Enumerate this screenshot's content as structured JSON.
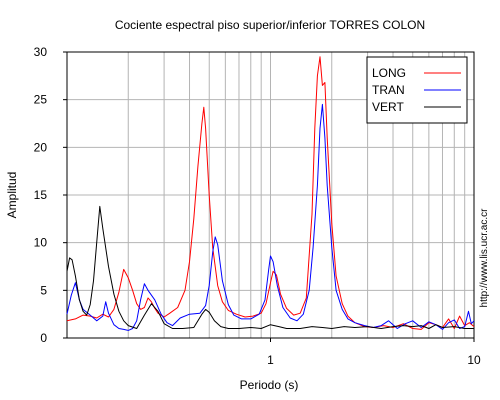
{
  "chart_data": {
    "type": "line",
    "title": "Cociente espectral piso superior/inferior  TORRES COLON",
    "xlabel": "Periodo (s)",
    "ylabel": "Amplitud",
    "xscale": "log",
    "xlim": [
      0.1,
      10
    ],
    "ylim": [
      0,
      30
    ],
    "x_tick_labels": [
      "1",
      "10"
    ],
    "y_ticks": [
      0,
      5,
      10,
      15,
      20,
      25,
      30
    ],
    "grid": true,
    "legend_position": "top-right",
    "side_text": "http://www.lis.ucr.ac.cr",
    "series": [
      {
        "name": "LONG",
        "color": "#ff0000",
        "points": [
          [
            0.1,
            1.8
          ],
          [
            0.11,
            2.0
          ],
          [
            0.12,
            2.4
          ],
          [
            0.13,
            2.3
          ],
          [
            0.14,
            2.1
          ],
          [
            0.15,
            2.5
          ],
          [
            0.16,
            2.2
          ],
          [
            0.17,
            3.0
          ],
          [
            0.18,
            4.8
          ],
          [
            0.19,
            7.2
          ],
          [
            0.2,
            6.3
          ],
          [
            0.21,
            5.0
          ],
          [
            0.22,
            3.6
          ],
          [
            0.23,
            3.0
          ],
          [
            0.24,
            3.2
          ],
          [
            0.25,
            4.2
          ],
          [
            0.26,
            3.8
          ],
          [
            0.27,
            3.1
          ],
          [
            0.28,
            2.6
          ],
          [
            0.3,
            2.2
          ],
          [
            0.32,
            2.6
          ],
          [
            0.35,
            3.2
          ],
          [
            0.38,
            5.0
          ],
          [
            0.4,
            8.0
          ],
          [
            0.42,
            12.5
          ],
          [
            0.44,
            18.0
          ],
          [
            0.46,
            22.5
          ],
          [
            0.47,
            24.2
          ],
          [
            0.48,
            22.0
          ],
          [
            0.5,
            15.0
          ],
          [
            0.52,
            9.5
          ],
          [
            0.55,
            5.5
          ],
          [
            0.58,
            3.8
          ],
          [
            0.62,
            2.9
          ],
          [
            0.68,
            2.5
          ],
          [
            0.75,
            2.2
          ],
          [
            0.82,
            2.3
          ],
          [
            0.9,
            2.6
          ],
          [
            0.95,
            3.6
          ],
          [
            1.0,
            5.8
          ],
          [
            1.03,
            7.0
          ],
          [
            1.07,
            6.6
          ],
          [
            1.12,
            4.6
          ],
          [
            1.2,
            3.1
          ],
          [
            1.3,
            2.4
          ],
          [
            1.4,
            2.6
          ],
          [
            1.5,
            4.2
          ],
          [
            1.6,
            13.0
          ],
          [
            1.65,
            22.0
          ],
          [
            1.7,
            27.5
          ],
          [
            1.75,
            29.5
          ],
          [
            1.8,
            26.5
          ],
          [
            1.85,
            26.8
          ],
          [
            1.9,
            21.0
          ],
          [
            2.0,
            12.0
          ],
          [
            2.1,
            6.5
          ],
          [
            2.25,
            3.6
          ],
          [
            2.4,
            2.3
          ],
          [
            2.6,
            1.6
          ],
          [
            2.9,
            1.2
          ],
          [
            3.2,
            1.1
          ],
          [
            3.6,
            1.3
          ],
          [
            4.0,
            1.1
          ],
          [
            4.5,
            1.5
          ],
          [
            5.0,
            1.0
          ],
          [
            5.5,
            0.9
          ],
          [
            6.0,
            1.6
          ],
          [
            6.5,
            1.4
          ],
          [
            7.0,
            1.1
          ],
          [
            7.5,
            2.0
          ],
          [
            8.0,
            1.0
          ],
          [
            8.5,
            2.3
          ],
          [
            9.0,
            1.3
          ],
          [
            9.5,
            1.6
          ],
          [
            10.0,
            1.2
          ]
        ]
      },
      {
        "name": "TRAN",
        "color": "#0000ff",
        "points": [
          [
            0.1,
            2.5
          ],
          [
            0.105,
            4.5
          ],
          [
            0.11,
            5.8
          ],
          [
            0.115,
            4.0
          ],
          [
            0.12,
            3.0
          ],
          [
            0.13,
            2.4
          ],
          [
            0.14,
            1.8
          ],
          [
            0.15,
            2.3
          ],
          [
            0.155,
            3.8
          ],
          [
            0.16,
            2.6
          ],
          [
            0.17,
            1.4
          ],
          [
            0.18,
            1.0
          ],
          [
            0.19,
            0.9
          ],
          [
            0.2,
            0.8
          ],
          [
            0.21,
            1.0
          ],
          [
            0.22,
            1.8
          ],
          [
            0.23,
            4.0
          ],
          [
            0.24,
            5.7
          ],
          [
            0.25,
            5.0
          ],
          [
            0.27,
            4.0
          ],
          [
            0.29,
            2.5
          ],
          [
            0.31,
            1.6
          ],
          [
            0.33,
            1.3
          ],
          [
            0.36,
            2.1
          ],
          [
            0.4,
            2.5
          ],
          [
            0.45,
            2.6
          ],
          [
            0.48,
            3.4
          ],
          [
            0.5,
            5.5
          ],
          [
            0.52,
            9.0
          ],
          [
            0.535,
            10.6
          ],
          [
            0.55,
            9.8
          ],
          [
            0.58,
            6.0
          ],
          [
            0.62,
            3.5
          ],
          [
            0.66,
            2.4
          ],
          [
            0.72,
            2.0
          ],
          [
            0.8,
            2.0
          ],
          [
            0.88,
            2.5
          ],
          [
            0.94,
            4.0
          ],
          [
            0.98,
            7.2
          ],
          [
            1.0,
            8.6
          ],
          [
            1.03,
            8.0
          ],
          [
            1.08,
            5.5
          ],
          [
            1.15,
            3.2
          ],
          [
            1.25,
            2.1
          ],
          [
            1.35,
            1.8
          ],
          [
            1.45,
            2.5
          ],
          [
            1.55,
            5.0
          ],
          [
            1.62,
            9.5
          ],
          [
            1.7,
            16.0
          ],
          [
            1.75,
            22.0
          ],
          [
            1.8,
            24.5
          ],
          [
            1.85,
            21.0
          ],
          [
            1.9,
            16.0
          ],
          [
            2.0,
            9.5
          ],
          [
            2.1,
            5.0
          ],
          [
            2.25,
            3.0
          ],
          [
            2.4,
            2.0
          ],
          [
            2.6,
            1.6
          ],
          [
            2.9,
            1.3
          ],
          [
            3.2,
            1.1
          ],
          [
            3.5,
            1.3
          ],
          [
            3.8,
            1.8
          ],
          [
            4.2,
            1.0
          ],
          [
            4.6,
            1.5
          ],
          [
            5.0,
            1.8
          ],
          [
            5.5,
            1.1
          ],
          [
            6.0,
            1.7
          ],
          [
            6.5,
            1.4
          ],
          [
            7.0,
            0.9
          ],
          [
            7.5,
            1.6
          ],
          [
            8.0,
            1.9
          ],
          [
            8.5,
            1.0
          ],
          [
            9.0,
            1.2
          ],
          [
            9.4,
            2.8
          ],
          [
            9.7,
            1.5
          ],
          [
            10.0,
            1.8
          ]
        ]
      },
      {
        "name": "VERT",
        "color": "#000000",
        "points": [
          [
            0.1,
            7.0
          ],
          [
            0.103,
            8.4
          ],
          [
            0.106,
            8.2
          ],
          [
            0.11,
            6.5
          ],
          [
            0.115,
            4.0
          ],
          [
            0.12,
            2.8
          ],
          [
            0.125,
            2.4
          ],
          [
            0.13,
            3.5
          ],
          [
            0.135,
            6.0
          ],
          [
            0.14,
            10.0
          ],
          [
            0.145,
            13.8
          ],
          [
            0.15,
            11.5
          ],
          [
            0.16,
            7.5
          ],
          [
            0.17,
            4.6
          ],
          [
            0.18,
            2.8
          ],
          [
            0.19,
            1.8
          ],
          [
            0.2,
            1.3
          ],
          [
            0.22,
            1.0
          ],
          [
            0.24,
            2.4
          ],
          [
            0.26,
            3.6
          ],
          [
            0.28,
            2.8
          ],
          [
            0.3,
            1.5
          ],
          [
            0.33,
            1.0
          ],
          [
            0.37,
            1.0
          ],
          [
            0.42,
            1.1
          ],
          [
            0.46,
            2.5
          ],
          [
            0.48,
            3.0
          ],
          [
            0.5,
            2.7
          ],
          [
            0.53,
            1.8
          ],
          [
            0.57,
            1.2
          ],
          [
            0.62,
            1.0
          ],
          [
            0.7,
            1.0
          ],
          [
            0.8,
            1.1
          ],
          [
            0.9,
            1.0
          ],
          [
            1.0,
            1.4
          ],
          [
            1.1,
            1.2
          ],
          [
            1.2,
            1.0
          ],
          [
            1.4,
            1.0
          ],
          [
            1.6,
            1.2
          ],
          [
            1.8,
            1.1
          ],
          [
            2.0,
            1.0
          ],
          [
            2.3,
            1.2
          ],
          [
            2.6,
            1.1
          ],
          [
            3.0,
            1.2
          ],
          [
            3.5,
            1.0
          ],
          [
            4.0,
            1.2
          ],
          [
            4.5,
            1.3
          ],
          [
            5.0,
            1.2
          ],
          [
            5.5,
            1.3
          ],
          [
            6.0,
            1.0
          ],
          [
            6.5,
            1.4
          ],
          [
            7.0,
            1.1
          ],
          [
            8.0,
            1.2
          ],
          [
            9.0,
            1.0
          ],
          [
            10.0,
            1.0
          ]
        ]
      }
    ]
  }
}
